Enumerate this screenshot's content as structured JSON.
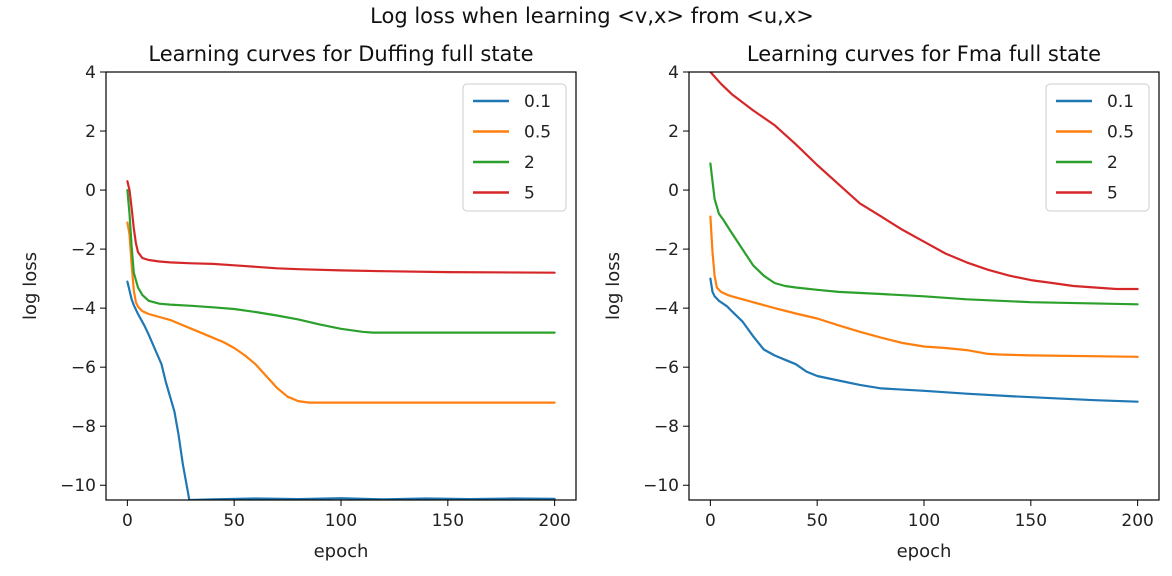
{
  "suptitle": "Log loss when learning <v,x> from <u,x>",
  "colors": {
    "0.1": "#1f77b4",
    "0.5": "#ff7f0e",
    "2": "#2ca02c",
    "5": "#d62728"
  },
  "chart_data": [
    {
      "type": "line",
      "title": "Learning curves for Duffing full state",
      "xlabel": "epoch",
      "ylabel": "log loss",
      "xlim": [
        -10,
        210
      ],
      "ylim": [
        -10.5,
        4
      ],
      "xticks": [
        0,
        50,
        100,
        150,
        200
      ],
      "xtick_labels": [
        "0",
        "50",
        "100",
        "150",
        "200"
      ],
      "yticks": [
        4,
        2,
        0,
        -2,
        -4,
        -6,
        -8,
        -10
      ],
      "ytick_labels": [
        "4",
        "2",
        "0",
        "−2",
        "−4",
        "−6",
        "−8",
        "−10"
      ],
      "grid": false,
      "legend": "top-right",
      "series": [
        {
          "name": "0.1",
          "color": "#1f77b4",
          "x": [
            0,
            1,
            2,
            3,
            5,
            8,
            10,
            13,
            16,
            18,
            20,
            22,
            24,
            26,
            28,
            29,
            30,
            40,
            60,
            80,
            100,
            120,
            140,
            160,
            180,
            200
          ],
          "y": [
            -3.1,
            -3.4,
            -3.7,
            -3.9,
            -4.2,
            -4.6,
            -4.9,
            -5.4,
            -5.9,
            -6.5,
            -7.0,
            -7.5,
            -8.3,
            -9.3,
            -10.1,
            -10.5,
            -10.5,
            -10.48,
            -10.45,
            -10.47,
            -10.44,
            -10.48,
            -10.45,
            -10.47,
            -10.45,
            -10.46
          ]
        },
        {
          "name": "0.5",
          "color": "#ff7f0e",
          "x": [
            0,
            1,
            2,
            3,
            4,
            5,
            7,
            10,
            15,
            20,
            25,
            30,
            35,
            40,
            45,
            50,
            55,
            60,
            65,
            70,
            75,
            80,
            85,
            90,
            100,
            120,
            150,
            200
          ],
          "y": [
            -1.1,
            -1.5,
            -2.5,
            -3.4,
            -3.8,
            -3.95,
            -4.1,
            -4.2,
            -4.3,
            -4.4,
            -4.55,
            -4.7,
            -4.85,
            -5.0,
            -5.15,
            -5.35,
            -5.6,
            -5.9,
            -6.3,
            -6.7,
            -7.0,
            -7.15,
            -7.2,
            -7.2,
            -7.2,
            -7.2,
            -7.2,
            -7.2
          ]
        },
        {
          "name": "2",
          "color": "#2ca02c",
          "x": [
            0,
            1,
            2,
            3,
            5,
            7,
            10,
            15,
            20,
            30,
            40,
            50,
            60,
            70,
            80,
            90,
            100,
            110,
            115,
            120,
            150,
            200
          ],
          "y": [
            0.0,
            -0.8,
            -1.9,
            -2.8,
            -3.3,
            -3.55,
            -3.75,
            -3.85,
            -3.88,
            -3.92,
            -3.97,
            -4.03,
            -4.13,
            -4.25,
            -4.38,
            -4.55,
            -4.7,
            -4.8,
            -4.83,
            -4.83,
            -4.83,
            -4.83
          ]
        },
        {
          "name": "5",
          "color": "#d62728",
          "x": [
            0,
            1,
            2,
            3,
            4,
            5,
            7,
            10,
            15,
            20,
            30,
            40,
            50,
            60,
            70,
            80,
            100,
            120,
            150,
            200
          ],
          "y": [
            0.3,
            0.0,
            -0.6,
            -1.3,
            -1.8,
            -2.1,
            -2.3,
            -2.37,
            -2.42,
            -2.45,
            -2.48,
            -2.5,
            -2.55,
            -2.6,
            -2.65,
            -2.68,
            -2.72,
            -2.75,
            -2.78,
            -2.8
          ]
        }
      ]
    },
    {
      "type": "line",
      "title": "Learning curves for Fma full state",
      "xlabel": "epoch",
      "ylabel": "log loss",
      "xlim": [
        -10,
        210
      ],
      "ylim": [
        -10.5,
        4
      ],
      "xticks": [
        0,
        50,
        100,
        150,
        200
      ],
      "xtick_labels": [
        "0",
        "50",
        "100",
        "150",
        "200"
      ],
      "yticks": [
        4,
        2,
        0,
        -2,
        -4,
        -6,
        -8,
        -10
      ],
      "ytick_labels": [
        "4",
        "2",
        "0",
        "−2",
        "−4",
        "−6",
        "−8",
        "−10"
      ],
      "grid": false,
      "legend": "top-right",
      "series": [
        {
          "name": "0.1",
          "color": "#1f77b4",
          "x": [
            0,
            1,
            2,
            4,
            6,
            8,
            10,
            15,
            20,
            25,
            30,
            35,
            40,
            45,
            50,
            60,
            70,
            80,
            100,
            120,
            140,
            160,
            180,
            200
          ],
          "y": [
            -3.0,
            -3.45,
            -3.6,
            -3.75,
            -3.85,
            -3.95,
            -4.1,
            -4.45,
            -4.95,
            -5.4,
            -5.6,
            -5.75,
            -5.9,
            -6.15,
            -6.3,
            -6.45,
            -6.6,
            -6.72,
            -6.8,
            -6.9,
            -6.98,
            -7.05,
            -7.12,
            -7.17
          ]
        },
        {
          "name": "0.5",
          "color": "#ff7f0e",
          "x": [
            0,
            1,
            2,
            3,
            5,
            8,
            10,
            20,
            30,
            40,
            50,
            60,
            70,
            80,
            90,
            100,
            110,
            120,
            130,
            135,
            150,
            200
          ],
          "y": [
            -0.9,
            -2.1,
            -2.9,
            -3.3,
            -3.45,
            -3.55,
            -3.6,
            -3.8,
            -4.0,
            -4.18,
            -4.35,
            -4.58,
            -4.8,
            -5.0,
            -5.18,
            -5.3,
            -5.35,
            -5.42,
            -5.55,
            -5.57,
            -5.6,
            -5.65
          ]
        },
        {
          "name": "2",
          "color": "#2ca02c",
          "x": [
            0,
            1,
            2,
            4,
            6,
            10,
            15,
            20,
            25,
            30,
            35,
            40,
            50,
            60,
            80,
            100,
            120,
            150,
            200
          ],
          "y": [
            0.9,
            0.3,
            -0.3,
            -0.8,
            -1.0,
            -1.45,
            -2.0,
            -2.55,
            -2.9,
            -3.15,
            -3.25,
            -3.3,
            -3.38,
            -3.45,
            -3.52,
            -3.6,
            -3.7,
            -3.8,
            -3.87
          ]
        },
        {
          "name": "5",
          "color": "#d62728",
          "x": [
            0,
            5,
            10,
            20,
            30,
            40,
            50,
            60,
            70,
            80,
            90,
            100,
            110,
            120,
            130,
            140,
            150,
            160,
            170,
            180,
            190,
            200
          ],
          "y": [
            4.0,
            3.6,
            3.25,
            2.7,
            2.2,
            1.55,
            0.85,
            0.2,
            -0.45,
            -0.9,
            -1.35,
            -1.75,
            -2.15,
            -2.45,
            -2.7,
            -2.9,
            -3.05,
            -3.15,
            -3.25,
            -3.3,
            -3.35,
            -3.35
          ]
        }
      ]
    }
  ]
}
